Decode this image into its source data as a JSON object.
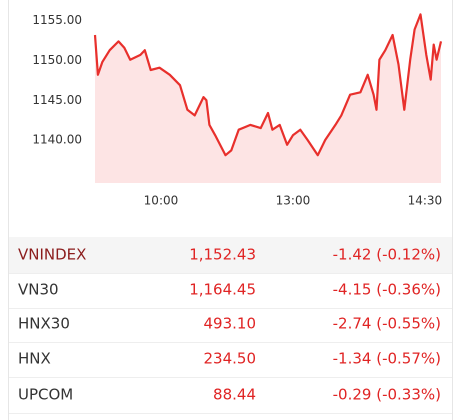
{
  "chart_data": {
    "type": "line",
    "x": [
      0,
      2,
      5,
      10,
      16,
      20,
      24,
      31,
      34,
      38,
      44,
      51,
      58,
      63,
      68,
      74,
      76,
      78,
      82,
      89,
      93,
      98,
      106,
      113,
      118,
      121,
      126,
      131,
      135,
      140,
      145,
      152,
      157,
      164,
      168,
      174,
      181,
      186,
      190,
      192,
      194,
      198,
      203,
      207,
      211,
      215,
      218,
      222,
      226,
      229,
      231,
      233,
      236
    ],
    "values": [
      1153.2,
      1148.2,
      1149.8,
      1151.3,
      1152.4,
      1151.6,
      1150.1,
      1150.7,
      1151.3,
      1148.8,
      1149.1,
      1148.2,
      1146.9,
      1143.8,
      1143.1,
      1145.4,
      1145.0,
      1141.9,
      1140.6,
      1138.1,
      1138.7,
      1141.3,
      1141.9,
      1141.5,
      1143.4,
      1141.3,
      1141.9,
      1139.4,
      1140.6,
      1141.3,
      1140.0,
      1138.1,
      1140.0,
      1141.9,
      1143.1,
      1145.7,
      1146.0,
      1148.2,
      1145.7,
      1143.8,
      1150.1,
      1151.3,
      1153.2,
      1149.5,
      1143.8,
      1150.1,
      1153.9,
      1155.8,
      1150.7,
      1147.6,
      1152.0,
      1150.1,
      1152.4
    ],
    "color": "#e8302c",
    "fill": "#fde4e4",
    "xlim": [
      0,
      236
    ],
    "xticks": [
      {
        "value": 45,
        "label": "10:00"
      },
      {
        "value": 135,
        "label": "13:00"
      },
      {
        "value": 225,
        "label": "14:30"
      }
    ],
    "ylim": [
      1134.6,
      1156.6
    ],
    "yticks": [
      {
        "value": 1140,
        "label": "1140.00"
      },
      {
        "value": 1145,
        "label": "1145.00"
      },
      {
        "value": 1150,
        "label": "1150.00"
      },
      {
        "value": 1155,
        "label": "1155.00"
      }
    ],
    "grid": false
  },
  "table": {
    "rows": [
      [
        "VNINDEX",
        "1,152.43",
        "-1.42 (-0.12%)"
      ],
      [
        "VN30",
        "1,164.45",
        "-4.15 (-0.36%)"
      ],
      [
        "HNX30",
        "493.10",
        "-2.74 (-0.55%)"
      ],
      [
        "HNX",
        "234.50",
        "-1.34 (-0.57%)"
      ],
      [
        "UPCOM",
        "88.44",
        "-0.29 (-0.33%)"
      ]
    ]
  }
}
